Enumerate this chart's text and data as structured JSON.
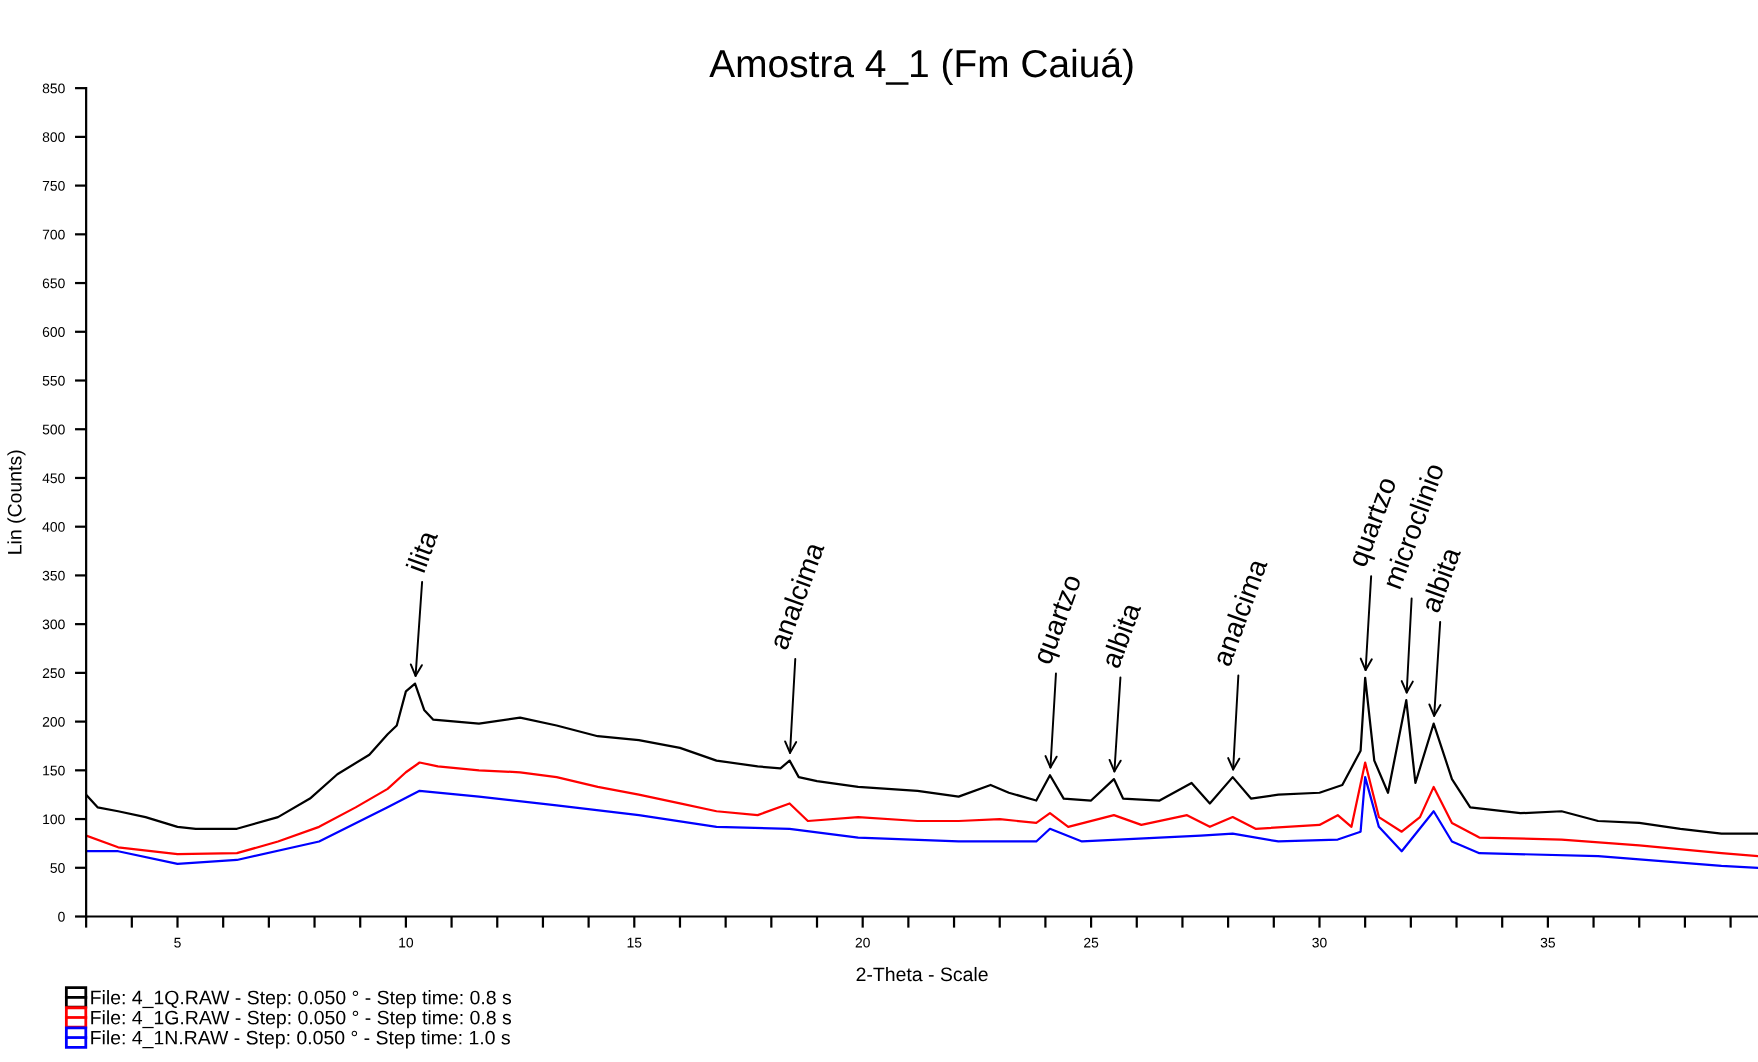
{
  "chart_data": {
    "type": "line",
    "title": "Amostra 4_1 (Fm Caiuá)",
    "xlabel": "2-Theta - Scale",
    "ylabel": "Lin (Counts)",
    "xlim": [
      3,
      39.6
    ],
    "ylim": [
      0,
      850
    ],
    "xticks": [
      {
        "value": 3,
        "label": null
      },
      {
        "value": 4,
        "label": null
      },
      5,
      {
        "value": 6,
        "label": null
      },
      {
        "value": 7,
        "label": null
      },
      {
        "value": 8,
        "label": null
      },
      {
        "value": 9,
        "label": null
      },
      10,
      {
        "value": 11,
        "label": null
      },
      {
        "value": 12,
        "label": null
      },
      {
        "value": 13,
        "label": null
      },
      {
        "value": 14,
        "label": null
      },
      15,
      {
        "value": 16,
        "label": null
      },
      {
        "value": 17,
        "label": null
      },
      {
        "value": 18,
        "label": null
      },
      {
        "value": 19,
        "label": null
      },
      20,
      {
        "value": 21,
        "label": null
      },
      {
        "value": 22,
        "label": null
      },
      {
        "value": 23,
        "label": null
      },
      {
        "value": 24,
        "label": null
      },
      25,
      {
        "value": 26,
        "label": null
      },
      {
        "value": 27,
        "label": null
      },
      {
        "value": 28,
        "label": null
      },
      {
        "value": 29,
        "label": null
      },
      30,
      {
        "value": 31,
        "label": null
      },
      {
        "value": 32,
        "label": null
      },
      {
        "value": 33,
        "label": null
      },
      {
        "value": 34,
        "label": null
      },
      35,
      {
        "value": 36,
        "label": null
      },
      {
        "value": 37,
        "label": null
      },
      {
        "value": 38,
        "label": null
      },
      {
        "value": 39,
        "label": null
      }
    ],
    "yticks": [
      0,
      50,
      100,
      150,
      200,
      250,
      300,
      350,
      400,
      450,
      500,
      550,
      600,
      650,
      700,
      750,
      800,
      850
    ],
    "grid": false,
    "legend": "bottom left",
    "marker": "none",
    "line_style": "solid",
    "series": [
      {
        "name": "File: 4_1Q.RAW - Step: 0.050 ° - Step time: 0.8 s",
        "color": "#000000",
        "x": [
          3.0,
          3.25,
          3.7,
          4.3,
          5.0,
          5.4,
          6.3,
          7.2,
          7.9,
          8.5,
          9.2,
          9.6,
          9.8,
          10.0,
          10.2,
          10.4,
          10.6,
          11.6,
          12.5,
          13.3,
          14.2,
          15.1,
          16.0,
          16.8,
          17.7,
          18.2,
          18.4,
          18.6,
          19.0,
          19.9,
          21.2,
          22.1,
          22.8,
          23.2,
          23.8,
          24.1,
          24.4,
          25.0,
          25.5,
          25.7,
          26.5,
          27.2,
          27.6,
          28.1,
          28.5,
          29.1,
          30.0,
          30.5,
          30.9,
          31.0,
          31.2,
          31.5,
          31.9,
          32.1,
          32.5,
          32.9,
          33.3,
          34.4,
          35.3,
          36.1,
          37.0,
          37.9,
          38.8,
          39.6
        ],
        "values": [
          125,
          112,
          108,
          102,
          92,
          90,
          90,
          102,
          121,
          146,
          166,
          187,
          196,
          231,
          239,
          212,
          202,
          198,
          204,
          196,
          185,
          181,
          173,
          160,
          154,
          152,
          160,
          143,
          139,
          133,
          129,
          123,
          135,
          127,
          119,
          145,
          121,
          119,
          141,
          121,
          119,
          137,
          116,
          143,
          121,
          125,
          127,
          135,
          170,
          245,
          160,
          127,
          222,
          137,
          198,
          141,
          112,
          106,
          108,
          98,
          96,
          90,
          85,
          85
        ]
      },
      {
        "name": "File: 4_1G.RAW - Step: 0.050 ° - Step time: 0.8 s",
        "color": "#ff0000",
        "x": [
          3.0,
          3.7,
          5.0,
          6.3,
          7.2,
          8.1,
          8.9,
          9.6,
          10.0,
          10.3,
          10.7,
          11.6,
          12.5,
          13.3,
          14.2,
          15.1,
          16.0,
          16.8,
          17.7,
          18.4,
          18.8,
          19.9,
          21.2,
          22.1,
          23.0,
          23.8,
          24.1,
          24.5,
          25.5,
          26.1,
          27.1,
          27.6,
          28.1,
          28.6,
          30.0,
          30.4,
          30.7,
          31.0,
          31.3,
          31.8,
          32.2,
          32.5,
          32.9,
          33.5,
          35.3,
          37.0,
          38.8,
          39.6
        ],
        "values": [
          83,
          71,
          64,
          65,
          77,
          92,
          112,
          131,
          148,
          158,
          154,
          150,
          148,
          143,
          133,
          125,
          116,
          108,
          104,
          116,
          98,
          102,
          98,
          98,
          100,
          96,
          106,
          92,
          104,
          94,
          104,
          92,
          102,
          90,
          94,
          104,
          92,
          158,
          102,
          87,
          102,
          133,
          96,
          81,
          79,
          73,
          65,
          62
        ]
      },
      {
        "name": "File: 4_1N.RAW - Step: 0.050 ° - Step time: 1.0 s",
        "color": "#0000ff",
        "x": [
          3.0,
          3.7,
          5.0,
          6.3,
          8.1,
          9.6,
          10.3,
          11.6,
          13.3,
          15.1,
          16.8,
          18.4,
          19.9,
          22.1,
          23.8,
          24.1,
          24.8,
          27.4,
          28.1,
          29.1,
          30.4,
          30.9,
          31.0,
          31.3,
          31.8,
          32.5,
          32.9,
          33.5,
          36.1,
          38.8,
          39.6
        ],
        "values": [
          67,
          67,
          54,
          58,
          77,
          112,
          129,
          123,
          114,
          104,
          92,
          90,
          81,
          77,
          77,
          90,
          77,
          83,
          85,
          77,
          79,
          87,
          143,
          92,
          67,
          108,
          77,
          65,
          62,
          52,
          50
        ]
      }
    ],
    "annotations": [
      {
        "text": "ilita",
        "x": 10.2,
        "y": 239
      },
      {
        "text": "analcima",
        "x": 18.4,
        "y": 160
      },
      {
        "text": "quartzo",
        "x": 24.1,
        "y": 145
      },
      {
        "text": "albita",
        "x": 25.5,
        "y": 141
      },
      {
        "text": "analcima",
        "x": 28.1,
        "y": 143
      },
      {
        "text": "quartzo",
        "x": 31.0,
        "y": 245
      },
      {
        "text": "microclinio",
        "x": 31.9,
        "y": 222
      },
      {
        "text": "albita",
        "x": 32.5,
        "y": 198
      }
    ]
  }
}
